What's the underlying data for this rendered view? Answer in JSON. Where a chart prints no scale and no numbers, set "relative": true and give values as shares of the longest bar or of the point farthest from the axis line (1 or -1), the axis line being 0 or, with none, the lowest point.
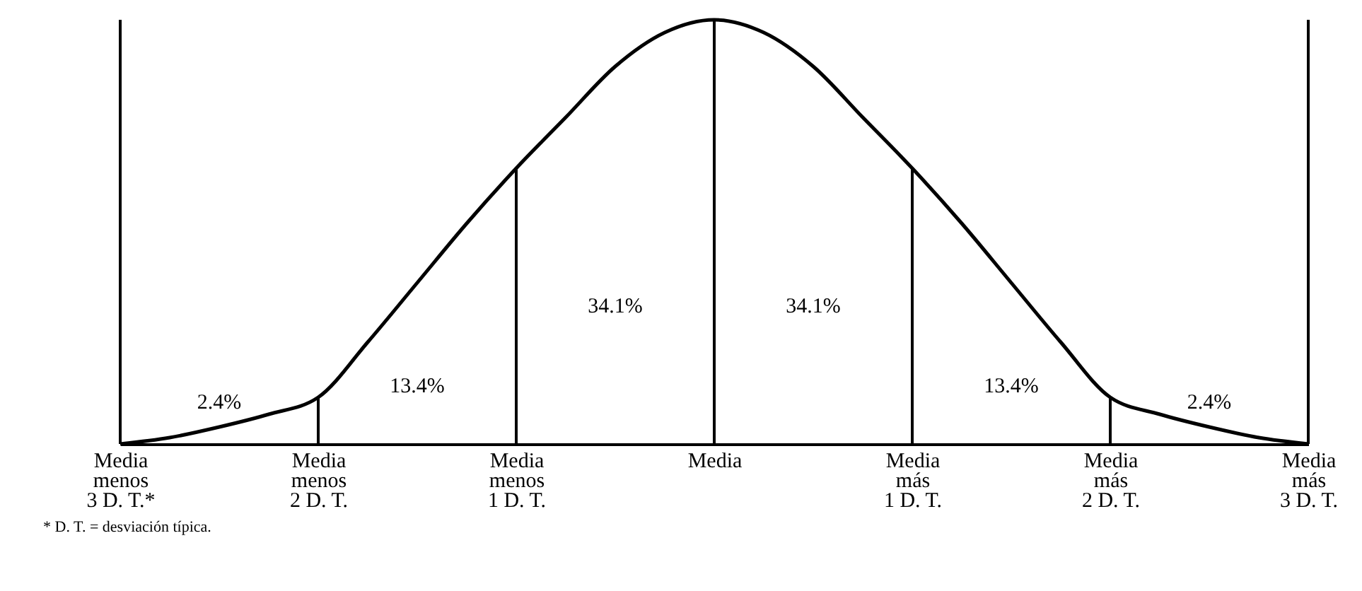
{
  "chart_data": {
    "type": "line",
    "relative": true,
    "line_style": "solid",
    "marker": "none",
    "grid": false,
    "categories": [
      "Media\nmenos\n3 D. T.*",
      null,
      null,
      null,
      "Media\nmenos\n2 D. T.",
      null,
      null,
      null,
      "Media\nmenos\n1 D. T.",
      null,
      null,
      null,
      "Media",
      null,
      null,
      null,
      "Media\nmás\n1 D. T.",
      null,
      null,
      null,
      "Media\nmás\n2 D. T.",
      null,
      null,
      null,
      "Media\nmás\n3 D. T."
    ],
    "series": [
      {
        "color": "#000000",
        "values": [
          0,
          0.015,
          0.04,
          0.07,
          0.11,
          0.24,
          0.38,
          0.52,
          0.65,
          0.77,
          0.89,
          0.97,
          1,
          0.97,
          0.89,
          0.77,
          0.65,
          0.52,
          0.38,
          0.24,
          0.11,
          0.07,
          0.04,
          0.015,
          0
        ]
      }
    ],
    "ref_lines": [
      {
        "axis": "x",
        "value": "Media\nmenos\n2 D. T.",
        "color": "#000000"
      },
      {
        "axis": "x",
        "value": "Media\nmenos\n1 D. T.",
        "color": "#000000"
      },
      {
        "axis": "x",
        "value": "Media",
        "color": "#000000"
      },
      {
        "axis": "x",
        "value": "Media\nmás\n1 D. T.",
        "color": "#000000"
      },
      {
        "axis": "x",
        "value": "Media\nmás\n2 D. T.",
        "color": "#000000"
      }
    ],
    "annotations": [
      "2.4%",
      "13.4%",
      "34.1%",
      "34.1%",
      "13.4%",
      "2.4%",
      "* D. T. = desviación típica."
    ]
  }
}
